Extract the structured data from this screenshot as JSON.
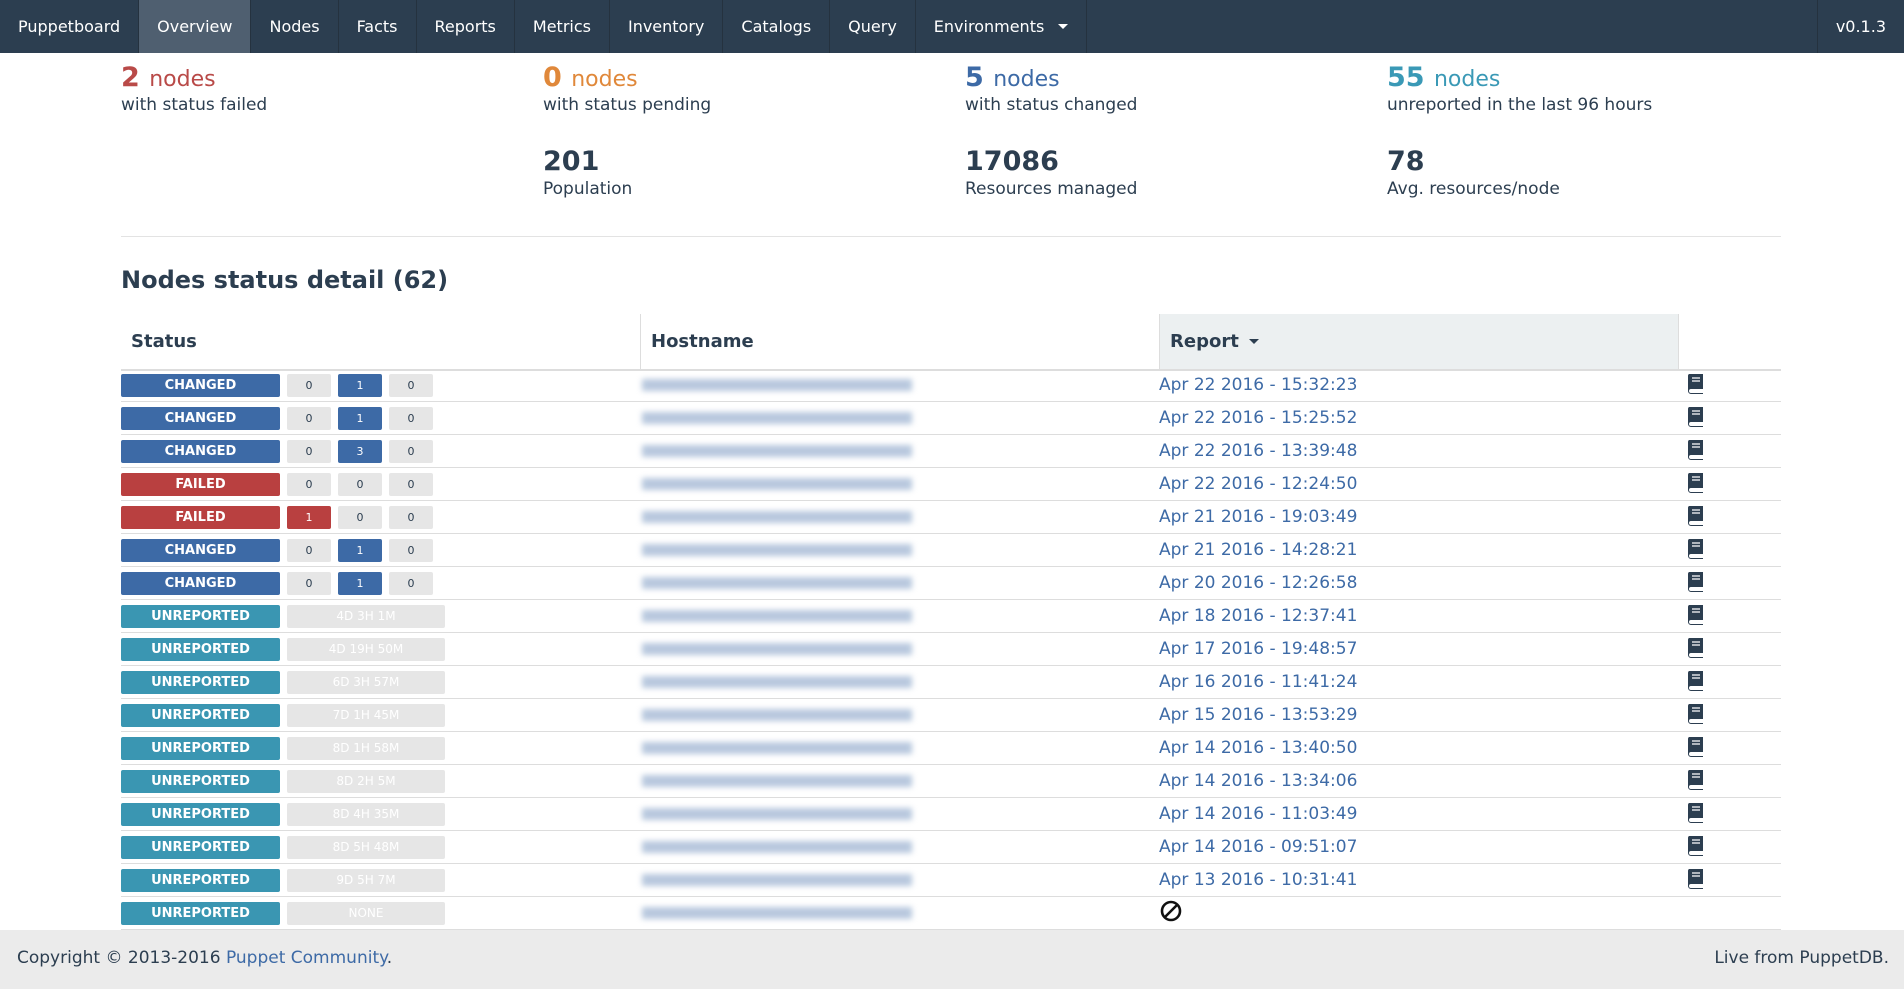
{
  "navbar": {
    "brand": "Puppetboard",
    "items": [
      "Overview",
      "Nodes",
      "Facts",
      "Reports",
      "Metrics",
      "Inventory",
      "Catalogs",
      "Query",
      "Environments"
    ],
    "active": 0,
    "version": "v0.1.3"
  },
  "stats": [
    {
      "value": 2,
      "unit": "nodes",
      "label": "with status failed",
      "color": "#b94a48"
    },
    {
      "value": 0,
      "unit": "nodes",
      "label": "with status pending",
      "color": "#e0883a"
    },
    {
      "value": 5,
      "unit": "nodes",
      "label": "with status changed",
      "color": "#3d6aa6"
    },
    {
      "value": 55,
      "unit": "nodes",
      "label": "unreported in the last 96 hours",
      "color": "#3a99b6"
    }
  ],
  "totals": [
    {
      "value": 201,
      "label": "Population"
    },
    {
      "value": 17086,
      "label": "Resources managed"
    },
    {
      "value": 78,
      "label": "Avg. resources/node"
    }
  ],
  "section_title": "Nodes status detail (62)",
  "table": {
    "headers": [
      "Status",
      "Hostname",
      "Report"
    ],
    "status_colors": {
      "CHANGED": "#3d6aa6",
      "FAILED": "#b94040",
      "UNREPORTED": "#3a96b2"
    },
    "rows": [
      {
        "status": "CHANGED",
        "counts": [
          0,
          1,
          0
        ],
        "report": "Apr 22 2016 - 15:32:23"
      },
      {
        "status": "CHANGED",
        "counts": [
          0,
          1,
          0
        ],
        "report": "Apr 22 2016 - 15:25:52"
      },
      {
        "status": "CHANGED",
        "counts": [
          0,
          3,
          0
        ],
        "report": "Apr 22 2016 - 13:39:48"
      },
      {
        "status": "FAILED",
        "counts": [
          0,
          0,
          0
        ],
        "report": "Apr 22 2016 - 12:24:50"
      },
      {
        "status": "FAILED",
        "counts": [
          1,
          0,
          0
        ],
        "report": "Apr 21 2016 - 19:03:49"
      },
      {
        "status": "CHANGED",
        "counts": [
          0,
          1,
          0
        ],
        "report": "Apr 21 2016 - 14:28:21"
      },
      {
        "status": "CHANGED",
        "counts": [
          0,
          1,
          0
        ],
        "report": "Apr 20 2016 - 12:26:58"
      },
      {
        "status": "UNREPORTED",
        "duration": "4D 3H 1M",
        "report": "Apr 18 2016 - 12:37:41"
      },
      {
        "status": "UNREPORTED",
        "duration": "4D 19H 50M",
        "report": "Apr 17 2016 - 19:48:57"
      },
      {
        "status": "UNREPORTED",
        "duration": "6D 3H 57M",
        "report": "Apr 16 2016 - 11:41:24"
      },
      {
        "status": "UNREPORTED",
        "duration": "7D 1H 45M",
        "report": "Apr 15 2016 - 13:53:29"
      },
      {
        "status": "UNREPORTED",
        "duration": "8D 1H 58M",
        "report": "Apr 14 2016 - 13:40:50"
      },
      {
        "status": "UNREPORTED",
        "duration": "8D 2H 5M",
        "report": "Apr 14 2016 - 13:34:06"
      },
      {
        "status": "UNREPORTED",
        "duration": "8D 4H 35M",
        "report": "Apr 14 2016 - 11:03:49"
      },
      {
        "status": "UNREPORTED",
        "duration": "8D 5H 48M",
        "report": "Apr 14 2016 - 09:51:07"
      },
      {
        "status": "UNREPORTED",
        "duration": "9D 5H 7M",
        "report": "Apr 13 2016 - 10:31:41"
      },
      {
        "status": "UNREPORTED",
        "duration": "NONE",
        "report": null
      }
    ]
  },
  "footer": {
    "copyright": "Copyright © 2013-2016",
    "link": "Puppet Community",
    "period": ".",
    "right": "Live from PuppetDB."
  }
}
